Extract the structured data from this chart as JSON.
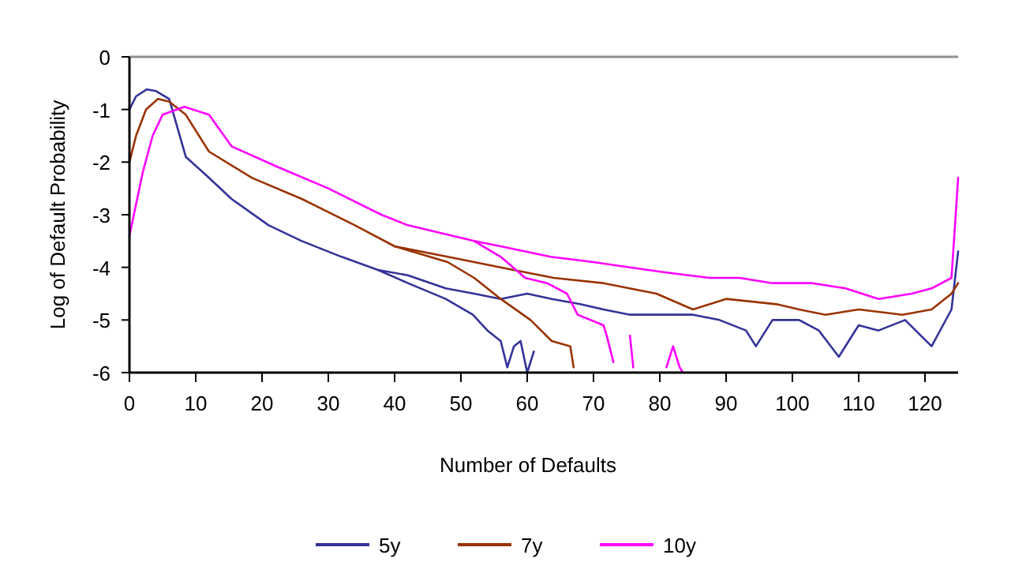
{
  "chart_data": {
    "type": "line",
    "xlabel": "Number of Defaults",
    "ylabel": "Log of Default Probability",
    "xlim": [
      0,
      125
    ],
    "ylim": [
      -6,
      0
    ],
    "xticks": [
      0,
      10,
      20,
      30,
      40,
      50,
      60,
      70,
      80,
      90,
      100,
      110,
      120
    ],
    "yticks": [
      0,
      -1,
      -2,
      -3,
      -4,
      -5,
      -6
    ],
    "legend": "bottom",
    "line_style": "solid",
    "marker": "none",
    "series": [
      {
        "name": "5y",
        "color": "#333399",
        "x": [
          0,
          1,
          2.6,
          4,
          6,
          8.5,
          12,
          15.4,
          21,
          26,
          32,
          37.5,
          42,
          47.7,
          52,
          56,
          60,
          63.7,
          68,
          71.5,
          75.5,
          79.5,
          85,
          89,
          93,
          94.5,
          97,
          101,
          104,
          107,
          110,
          113,
          117,
          121,
          124,
          125
        ],
        "values": [
          -1.0,
          -0.75,
          -0.62,
          -0.65,
          -0.8,
          -1.9,
          -2.3,
          -2.7,
          -3.2,
          -3.5,
          -3.8,
          -4.05,
          -4.15,
          -4.4,
          -4.5,
          -4.6,
          -4.5,
          -4.6,
          -4.7,
          -4.8,
          -4.9,
          -4.9,
          -4.9,
          -5.0,
          -5.2,
          -5.5,
          -5.0,
          -5.0,
          -5.2,
          -5.7,
          -5.1,
          -5.2,
          -5.0,
          -5.5,
          -4.8,
          -3.7
        ]
      },
      {
        "color": "#333399",
        "x": [
          37.5,
          42,
          47.7,
          51.8,
          54,
          56,
          57,
          58,
          59,
          60,
          61
        ],
        "values": [
          -4.05,
          -4.3,
          -4.6,
          -4.9,
          -5.2,
          -5.4,
          -5.9,
          -5.5,
          -5.4,
          -6.0,
          -5.6
        ]
      },
      {
        "name": "7y",
        "color": "#993300",
        "x": [
          0,
          1,
          2.5,
          4.3,
          6,
          8.5,
          12,
          18.5,
          26,
          34,
          40,
          48,
          56,
          64,
          71.5,
          79.5,
          85,
          90,
          97.6,
          101,
          105,
          110,
          116.6,
          121,
          124,
          125
        ],
        "values": [
          -2.0,
          -1.5,
          -1.0,
          -0.8,
          -0.85,
          -1.1,
          -1.8,
          -2.3,
          -2.7,
          -3.2,
          -3.6,
          -3.8,
          -4.0,
          -4.2,
          -4.3,
          -4.5,
          -4.8,
          -4.6,
          -4.7,
          -4.8,
          -4.9,
          -4.8,
          -4.9,
          -4.8,
          -4.5,
          -4.3
        ]
      },
      {
        "color": "#993300",
        "x": [
          40,
          48,
          52,
          56,
          60.5,
          63.7,
          66.5,
          67
        ],
        "values": [
          -3.6,
          -3.9,
          -4.2,
          -4.6,
          -5.0,
          -5.4,
          -5.5,
          -5.9
        ]
      },
      {
        "name": "10y",
        "color": "#ff00ff",
        "x": [
          0,
          1,
          2,
          3.5,
          5,
          8.3,
          12,
          15.4,
          22.5,
          30,
          38,
          42,
          52,
          56,
          63.5,
          70,
          75.5,
          81,
          87.5,
          92,
          97,
          103,
          108,
          113,
          118,
          121,
          124,
          125
        ],
        "values": [
          -3.4,
          -2.8,
          -2.2,
          -1.5,
          -1.1,
          -0.95,
          -1.1,
          -1.7,
          -2.1,
          -2.5,
          -3.0,
          -3.2,
          -3.5,
          -3.6,
          -3.8,
          -3.9,
          -4.0,
          -4.1,
          -4.2,
          -4.2,
          -4.3,
          -4.3,
          -4.4,
          -4.6,
          -4.5,
          -4.4,
          -4.2,
          -2.3
        ]
      },
      {
        "color": "#ff00ff",
        "x": [
          52,
          56,
          59.7,
          63,
          66,
          67.6,
          71.5,
          72,
          73,
          73.5,
          75.5,
          76,
          77,
          81,
          82,
          83,
          83.5
        ],
        "values": [
          -3.5,
          -3.8,
          -4.2,
          -4.3,
          -4.5,
          -4.9,
          -5.1,
          -5.3,
          -5.8,
          null,
          -5.3,
          -5.9,
          null,
          -5.9,
          -5.5,
          -5.9,
          -6.0
        ]
      }
    ]
  }
}
